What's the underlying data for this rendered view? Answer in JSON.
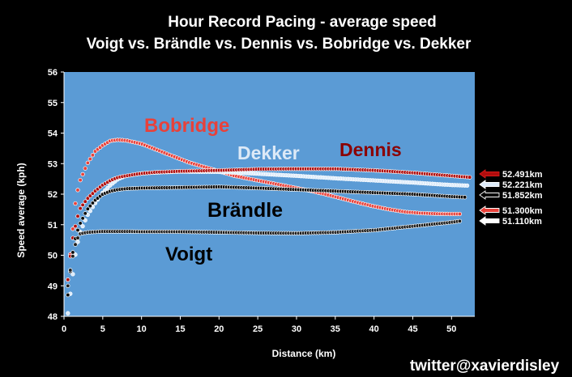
{
  "title_line1": "Hour Record Pacing - average speed",
  "title_line2": "Voigt vs. Brändle vs. Dennis vs. Bobridge vs. Dekker",
  "credit": "twitter@xavierdisley",
  "chart_data": {
    "type": "scatter",
    "xlabel": "Distance (km)",
    "ylabel": "Speed average (kph)",
    "xlim": [
      0,
      53
    ],
    "ylim": [
      48,
      56
    ],
    "xticks": [
      0,
      5,
      10,
      15,
      20,
      25,
      30,
      35,
      40,
      45,
      50
    ],
    "yticks": [
      48,
      49,
      50,
      51,
      52,
      53,
      54,
      55,
      56
    ],
    "background": "#5b9bd5",
    "series": [
      {
        "name": "Bobridge",
        "color": "#e8413a",
        "label_color": "#e8413a",
        "final_label": "51.300km",
        "points": [
          [
            0.5,
            49.2
          ],
          [
            1,
            50.5
          ],
          [
            1.5,
            51.8
          ],
          [
            2,
            52.4
          ],
          [
            3,
            53.0
          ],
          [
            4,
            53.4
          ],
          [
            5,
            53.6
          ],
          [
            6,
            53.75
          ],
          [
            7,
            53.78
          ],
          [
            8,
            53.76
          ],
          [
            10,
            53.65
          ],
          [
            12,
            53.45
          ],
          [
            14,
            53.25
          ],
          [
            16,
            53.05
          ],
          [
            18,
            52.9
          ],
          [
            20,
            52.75
          ],
          [
            22,
            52.6
          ],
          [
            25,
            52.45
          ],
          [
            28,
            52.3
          ],
          [
            30,
            52.2
          ],
          [
            32,
            52.1
          ],
          [
            34,
            51.98
          ],
          [
            36,
            51.85
          ],
          [
            38,
            51.72
          ],
          [
            40,
            51.6
          ],
          [
            42,
            51.5
          ],
          [
            44,
            51.42
          ],
          [
            46,
            51.38
          ],
          [
            48,
            51.36
          ],
          [
            50,
            51.35
          ],
          [
            51.3,
            51.35
          ]
        ]
      },
      {
        "name": "Dekker",
        "color": "#ddebfa",
        "label_color": "#dce9f7",
        "final_label": "52.221km",
        "points": [
          [
            0.5,
            48.1
          ],
          [
            1,
            49.1
          ],
          [
            1.5,
            50.1
          ],
          [
            2,
            50.7
          ],
          [
            3,
            51.3
          ],
          [
            4,
            51.7
          ],
          [
            5,
            52.05
          ],
          [
            6,
            52.3
          ],
          [
            7,
            52.5
          ],
          [
            8,
            52.6
          ],
          [
            10,
            52.68
          ],
          [
            12,
            52.71
          ],
          [
            15,
            52.74
          ],
          [
            20,
            52.73
          ],
          [
            25,
            52.67
          ],
          [
            30,
            52.6
          ],
          [
            35,
            52.52
          ],
          [
            40,
            52.45
          ],
          [
            45,
            52.38
          ],
          [
            50,
            52.3
          ],
          [
            52.2,
            52.28
          ]
        ]
      },
      {
        "name": "Dennis",
        "color": "#b00d0d",
        "label_color": "#8b0000",
        "final_label": "52.491km",
        "points": [
          [
            0.5,
            49.2
          ],
          [
            1,
            50.4
          ],
          [
            1.5,
            51.0
          ],
          [
            2,
            51.5
          ],
          [
            3,
            51.85
          ],
          [
            4,
            52.1
          ],
          [
            5,
            52.3
          ],
          [
            6,
            52.45
          ],
          [
            7,
            52.55
          ],
          [
            8,
            52.6
          ],
          [
            10,
            52.68
          ],
          [
            12,
            52.72
          ],
          [
            15,
            52.75
          ],
          [
            20,
            52.78
          ],
          [
            25,
            52.82
          ],
          [
            30,
            52.83
          ],
          [
            35,
            52.83
          ],
          [
            40,
            52.78
          ],
          [
            45,
            52.7
          ],
          [
            50,
            52.6
          ],
          [
            52.5,
            52.55
          ]
        ]
      },
      {
        "name": "Brändle",
        "color": "#0b0b0b",
        "label_color": "#000000",
        "final_label": "51.852km",
        "points": [
          [
            0.5,
            48.7
          ],
          [
            1,
            49.9
          ],
          [
            1.5,
            50.6
          ],
          [
            2,
            51.0
          ],
          [
            3,
            51.5
          ],
          [
            4,
            51.8
          ],
          [
            5,
            52.0
          ],
          [
            6,
            52.1
          ],
          [
            7,
            52.15
          ],
          [
            8,
            52.18
          ],
          [
            10,
            52.2
          ],
          [
            15,
            52.22
          ],
          [
            20,
            52.24
          ],
          [
            25,
            52.2
          ],
          [
            30,
            52.15
          ],
          [
            35,
            52.1
          ],
          [
            40,
            52.05
          ],
          [
            45,
            52.0
          ],
          [
            50,
            51.92
          ],
          [
            51.85,
            51.9
          ]
        ]
      },
      {
        "name": "Voigt",
        "color": "#1c1c1c",
        "label_color": "#000000",
        "final_label": "51.110km",
        "points": [
          [
            0.5,
            49.0
          ],
          [
            1,
            49.8
          ],
          [
            1.5,
            50.4
          ],
          [
            2,
            50.7
          ],
          [
            3,
            50.75
          ],
          [
            5,
            50.78
          ],
          [
            8,
            50.78
          ],
          [
            10,
            50.77
          ],
          [
            15,
            50.77
          ],
          [
            20,
            50.75
          ],
          [
            25,
            50.73
          ],
          [
            30,
            50.72
          ],
          [
            35,
            50.75
          ],
          [
            40,
            50.82
          ],
          [
            45,
            50.95
          ],
          [
            50,
            51.08
          ],
          [
            51.1,
            51.12
          ]
        ]
      }
    ]
  }
}
